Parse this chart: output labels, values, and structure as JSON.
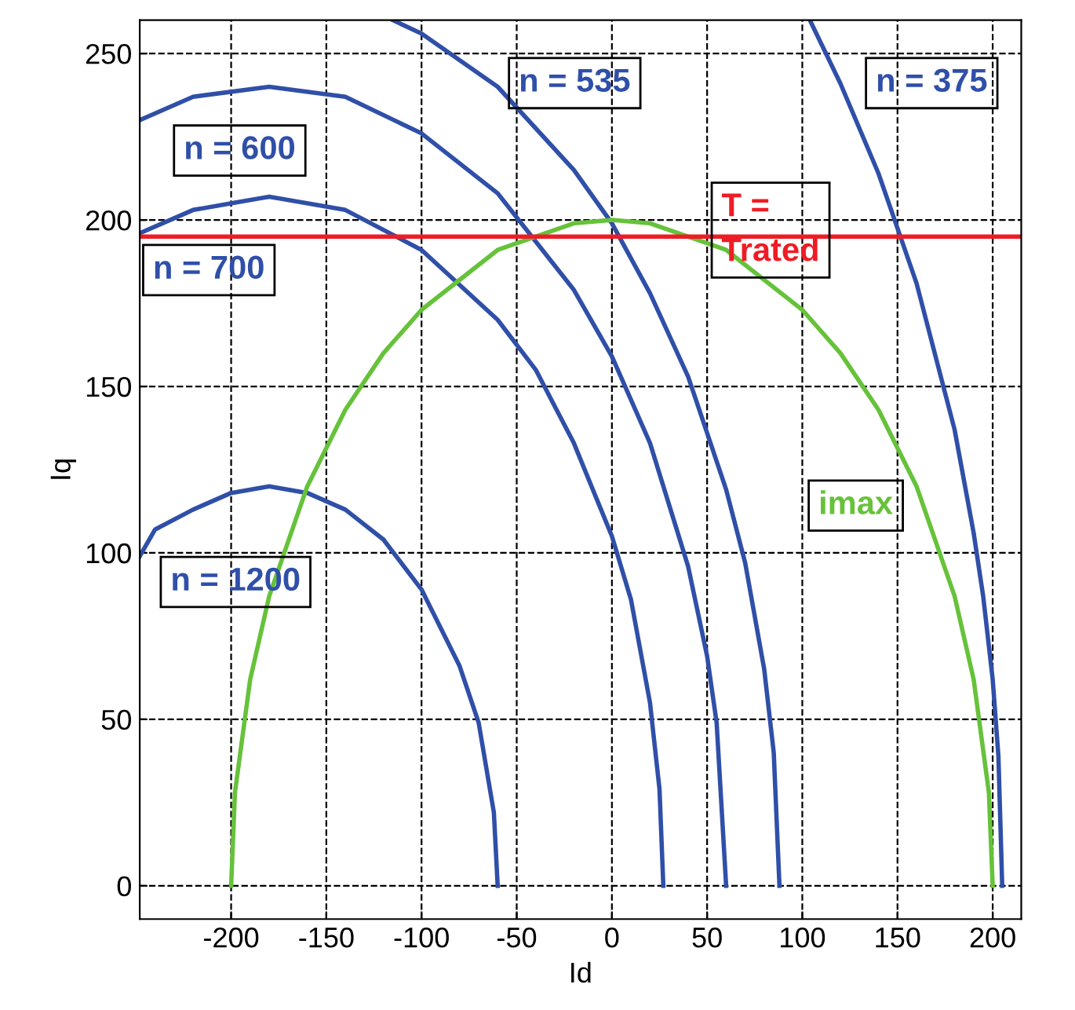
{
  "chart_data": {
    "type": "line",
    "xlabel": "Id",
    "ylabel": "Iq",
    "xlim": [
      -248,
      215
    ],
    "ylim": [
      -10,
      260
    ],
    "xticks": [
      -200,
      -150,
      -100,
      -50,
      0,
      50,
      100,
      150,
      200
    ],
    "yticks": [
      0,
      50,
      100,
      150,
      200,
      250
    ],
    "grid": true,
    "line_style": "solid",
    "marker": "none",
    "series": [
      {
        "name": "n = 1200",
        "color": "#2f4fa8",
        "x": [
          -248,
          -240,
          -220,
          -200,
          -180,
          -160,
          -140,
          -120,
          -100,
          -80,
          -70,
          -62,
          -60
        ],
        "values": [
          99,
          107,
          113,
          118,
          120,
          118,
          113,
          104,
          89,
          66,
          49,
          22,
          0
        ]
      },
      {
        "name": "n = 700",
        "color": "#2f4fa8",
        "x": [
          -248,
          -220,
          -180,
          -140,
          -100,
          -60,
          -40,
          -20,
          0,
          10,
          20,
          25,
          27
        ],
        "values": [
          196,
          203,
          207,
          203,
          191,
          170,
          155,
          133,
          105,
          86,
          55,
          29,
          0
        ]
      },
      {
        "name": "n = 600",
        "color": "#2f4fa8",
        "x": [
          -248,
          -220,
          -180,
          -140,
          -100,
          -60,
          -20,
          0,
          20,
          40,
          50,
          55,
          60
        ],
        "values": [
          230,
          237,
          240,
          237,
          226,
          208,
          179,
          159,
          133,
          96,
          69,
          49,
          0
        ]
      },
      {
        "name": "n = 535",
        "color": "#2f4fa8",
        "x": [
          -115,
          -100,
          -60,
          -20,
          0,
          20,
          40,
          60,
          70,
          80,
          85,
          88
        ],
        "values": [
          260,
          256,
          240,
          215,
          199,
          178,
          153,
          119,
          97,
          65,
          40,
          0
        ]
      },
      {
        "name": "n = 375",
        "color": "#2f4fa8",
        "x": [
          104,
          120,
          140,
          160,
          180,
          190,
          195,
          200,
          203,
          205
        ],
        "values": [
          260,
          241,
          214,
          181,
          137,
          106,
          87,
          62,
          39,
          0
        ]
      },
      {
        "name": "imax",
        "color": "#66c23a",
        "x": [
          -200,
          -198,
          -190,
          -180,
          -160,
          -140,
          -120,
          -100,
          -60,
          -20,
          0,
          20,
          60,
          100,
          120,
          140,
          160,
          180,
          190,
          198,
          200
        ],
        "values": [
          0,
          28,
          62,
          87,
          120,
          143,
          160,
          173,
          191,
          199,
          200,
          199,
          191,
          173,
          160,
          143,
          120,
          87,
          62,
          28,
          0
        ]
      }
    ],
    "ref_lines": [
      {
        "axis": "y",
        "value": 195,
        "label": "T =\nTrated",
        "color": "#ee1c25"
      }
    ]
  }
}
